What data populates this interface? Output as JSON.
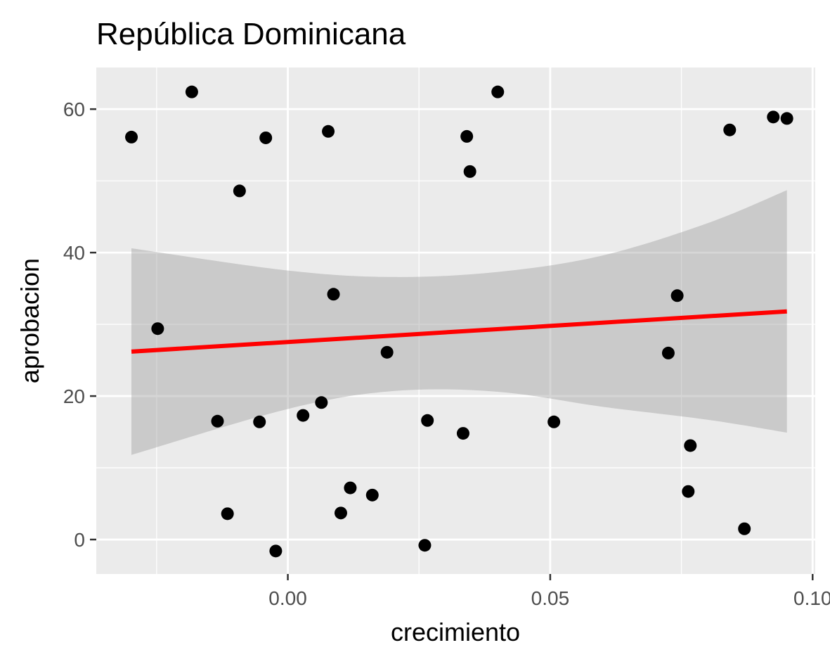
{
  "chart_data": {
    "type": "scatter",
    "title": "República Dominicana",
    "xlabel": "crecimiento",
    "ylabel": "aprobacion",
    "xlim": [
      -0.0365,
      0.1005
    ],
    "ylim": [
      -4.8,
      65.8
    ],
    "x_ticks": [
      0.0,
      0.05,
      0.1
    ],
    "x_tick_labels": [
      "0.00",
      "0.05",
      "0.10"
    ],
    "y_ticks": [
      0,
      20,
      40,
      60
    ],
    "y_tick_labels": [
      "0",
      "20",
      "40",
      "60"
    ],
    "grid": true,
    "points": [
      {
        "x": -0.0298,
        "y": 56.1
      },
      {
        "x": -0.0248,
        "y": 29.4
      },
      {
        "x": -0.0183,
        "y": 62.4
      },
      {
        "x": -0.0134,
        "y": 16.5
      },
      {
        "x": -0.0115,
        "y": 3.6
      },
      {
        "x": -0.0092,
        "y": 48.6
      },
      {
        "x": -0.0054,
        "y": 16.4
      },
      {
        "x": -0.0042,
        "y": 56.0
      },
      {
        "x": -0.0023,
        "y": -1.6
      },
      {
        "x": 0.0029,
        "y": 17.3
      },
      {
        "x": 0.0064,
        "y": 19.1
      },
      {
        "x": 0.0077,
        "y": 56.9
      },
      {
        "x": 0.0087,
        "y": 34.2
      },
      {
        "x": 0.0101,
        "y": 3.7
      },
      {
        "x": 0.0119,
        "y": 7.2
      },
      {
        "x": 0.0161,
        "y": 6.2
      },
      {
        "x": 0.0189,
        "y": 26.1
      },
      {
        "x": 0.0261,
        "y": -0.8
      },
      {
        "x": 0.0266,
        "y": 16.6
      },
      {
        "x": 0.0334,
        "y": 14.8
      },
      {
        "x": 0.0341,
        "y": 56.2
      },
      {
        "x": 0.0347,
        "y": 51.3
      },
      {
        "x": 0.04,
        "y": 62.4
      },
      {
        "x": 0.0507,
        "y": 16.4
      },
      {
        "x": 0.0725,
        "y": 26.0
      },
      {
        "x": 0.0742,
        "y": 34.0
      },
      {
        "x": 0.0763,
        "y": 6.7
      },
      {
        "x": 0.0767,
        "y": 13.1
      },
      {
        "x": 0.0842,
        "y": 57.1
      },
      {
        "x": 0.087,
        "y": 1.5
      },
      {
        "x": 0.0925,
        "y": 58.9
      },
      {
        "x": 0.0951,
        "y": 58.7
      }
    ],
    "fit_line": {
      "method": "lm",
      "x": [
        -0.0298,
        0.0951
      ],
      "y": [
        26.2,
        31.8
      ]
    },
    "confidence_band": {
      "x": [
        -0.0298,
        0.0,
        0.02,
        0.04,
        0.06,
        0.08,
        0.0951
      ],
      "lower": [
        11.8,
        18.2,
        20.7,
        20.6,
        18.5,
        16.7,
        14.9
      ],
      "upper": [
        40.6,
        37.5,
        36.6,
        37.3,
        39.6,
        44.1,
        48.7
      ]
    },
    "colors": {
      "panel_background": "#ebebeb",
      "grid": "#ffffff",
      "points": "#000000",
      "fit_line": "#ff0000",
      "band": "#999999"
    }
  }
}
